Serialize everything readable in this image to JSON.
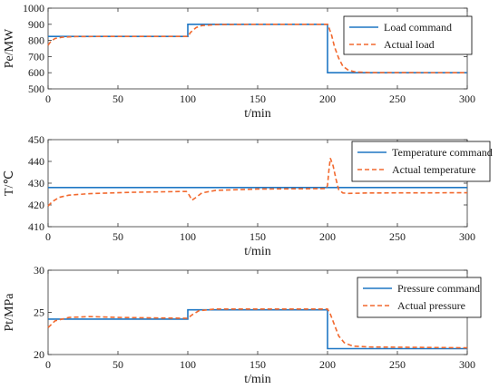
{
  "colors": {
    "command": "#1f77c4",
    "actual": "#f2692e",
    "axis": "#333333",
    "legend_border": "#000000"
  },
  "chart_data": [
    {
      "type": "line",
      "xlabel": "t/min",
      "ylabel": "Pe/MW",
      "xlim": [
        0,
        300
      ],
      "ylim": [
        500,
        1000
      ],
      "xticks": [
        0,
        50,
        100,
        150,
        200,
        250,
        300
      ],
      "yticks": [
        500,
        600,
        700,
        800,
        900,
        1000
      ],
      "legend_position": "top-right",
      "grid": false,
      "series": [
        {
          "name": "Load command",
          "style": "solid",
          "color": "#1f77c4",
          "x": [
            0,
            100,
            100,
            200,
            200,
            300
          ],
          "y": [
            825,
            825,
            900,
            900,
            600,
            600
          ]
        },
        {
          "name": "Actual load",
          "style": "dashed",
          "color": "#f2692e",
          "x": [
            0,
            2,
            5,
            10,
            20,
            50,
            100,
            102,
            106,
            110,
            120,
            150,
            200,
            201,
            203,
            205,
            208,
            211,
            215,
            220,
            230,
            300
          ],
          "y": [
            770,
            795,
            812,
            820,
            824,
            825,
            825,
            850,
            880,
            892,
            898,
            900,
            900,
            880,
            830,
            760,
            690,
            640,
            615,
            605,
            601,
            600
          ]
        }
      ]
    },
    {
      "type": "line",
      "xlabel": "t/min",
      "ylabel": "T/℃",
      "xlim": [
        0,
        300
      ],
      "ylim": [
        410,
        450
      ],
      "xticks": [
        0,
        50,
        100,
        150,
        200,
        250,
        300
      ],
      "yticks": [
        410,
        420,
        430,
        440,
        450
      ],
      "legend_position": "top-right",
      "grid": false,
      "series": [
        {
          "name": "Temperature command",
          "style": "solid",
          "color": "#1f77c4",
          "x": [
            0,
            300
          ],
          "y": [
            428,
            428
          ]
        },
        {
          "name": "Actual temperature",
          "style": "dashed",
          "color": "#f2692e",
          "x": [
            0,
            3,
            8,
            15,
            30,
            60,
            99,
            101,
            103,
            106,
            110,
            120,
            150,
            199,
            200,
            201,
            202,
            204,
            206,
            208,
            211,
            215,
            230,
            300
          ],
          "y": [
            419.5,
            421.5,
            423.5,
            424.5,
            425.2,
            425.8,
            426.2,
            424.5,
            422.2,
            423.5,
            425.5,
            426.7,
            427.3,
            427.5,
            429,
            436,
            441.5,
            438,
            432,
            427,
            425.5,
            425.3,
            425.5,
            425.6
          ]
        }
      ]
    },
    {
      "type": "line",
      "xlabel": "t/min",
      "ylabel": "Pt/MPa",
      "xlim": [
        0,
        300
      ],
      "ylim": [
        20,
        30
      ],
      "xticks": [
        0,
        50,
        100,
        150,
        200,
        250,
        300
      ],
      "yticks": [
        20,
        25,
        30
      ],
      "legend_position": "top-right",
      "grid": false,
      "series": [
        {
          "name": "Pressure command",
          "style": "solid",
          "color": "#1f77c4",
          "x": [
            0,
            100,
            100,
            200,
            200,
            300
          ],
          "y": [
            24.2,
            24.2,
            25.3,
            25.3,
            20.7,
            20.7
          ]
        },
        {
          "name": "Actual pressure",
          "style": "dashed",
          "color": "#f2692e",
          "x": [
            0,
            5,
            15,
            30,
            50,
            100,
            103,
            108,
            120,
            200,
            202,
            205,
            208,
            212,
            218,
            230,
            300
          ],
          "y": [
            23.2,
            24.0,
            24.4,
            24.5,
            24.4,
            24.3,
            24.7,
            25.2,
            25.4,
            25.4,
            24.8,
            23.5,
            22.2,
            21.4,
            21.0,
            20.9,
            20.8
          ]
        }
      ]
    }
  ]
}
